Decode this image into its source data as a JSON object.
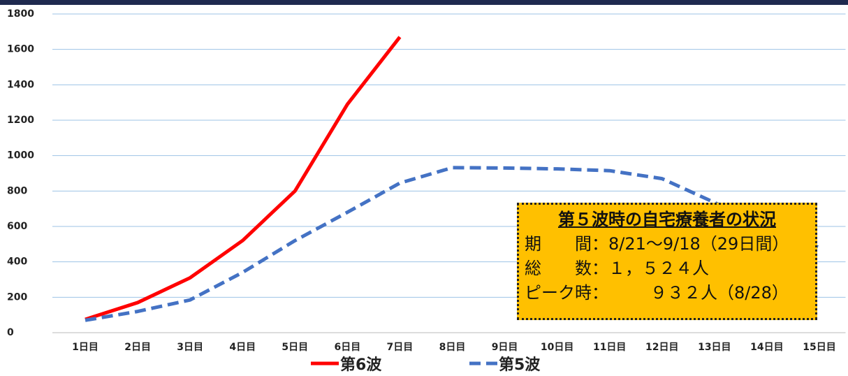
{
  "chart_data": {
    "type": "line",
    "categories": [
      "1日目",
      "2日目",
      "3日目",
      "4日目",
      "5日目",
      "6日目",
      "7日目",
      "8日目",
      "9日目",
      "10日目",
      "11日目",
      "12日目",
      "13日目",
      "14日目",
      "15日目"
    ],
    "series": [
      {
        "name": "第6波",
        "color": "#ff0000",
        "dash": false,
        "values": [
          75,
          170,
          310,
          520,
          800,
          1290,
          1670,
          null,
          null,
          null,
          null,
          null,
          null,
          null,
          null
        ]
      },
      {
        "name": "第5波",
        "color": "#4472c4",
        "dash": true,
        "values": [
          70,
          120,
          185,
          340,
          520,
          680,
          845,
          932,
          930,
          925,
          915,
          870,
          735,
          600,
          480
        ]
      }
    ],
    "ylim": [
      0,
      1800
    ],
    "yticks": [
      0,
      200,
      400,
      600,
      800,
      1000,
      1200,
      1400,
      1600,
      1800
    ],
    "grid": true,
    "annotation": {
      "title": "第５波時の自宅療養者の状況",
      "lines": [
        "期　　間：8/21～9/18（29日間）",
        "総　　数：１，５２４人",
        "ピーク時：　　　９３２人（8/28）"
      ]
    }
  }
}
